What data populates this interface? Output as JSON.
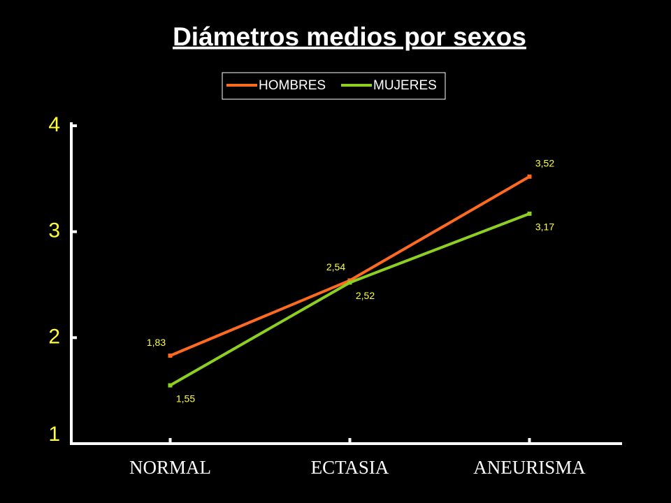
{
  "chart_data": {
    "type": "line",
    "title": "Diámetros medios por sexos",
    "categories": [
      "NORMAL",
      "ECTASIA",
      "ANEURISMA"
    ],
    "series": [
      {
        "name": "HOMBRES",
        "color": "#ff6a21",
        "values": [
          1.83,
          2.54,
          3.52
        ],
        "value_labels": [
          "1,83",
          "2,54",
          "3,52"
        ]
      },
      {
        "name": "MUJERES",
        "color": "#8ed021",
        "values": [
          1.55,
          2.52,
          3.17
        ],
        "value_labels": [
          "1,55",
          "2,52",
          "3,17"
        ]
      }
    ],
    "ylim": [
      1,
      4
    ],
    "yticks": [
      1,
      2,
      3,
      4
    ],
    "legend": "top"
  }
}
